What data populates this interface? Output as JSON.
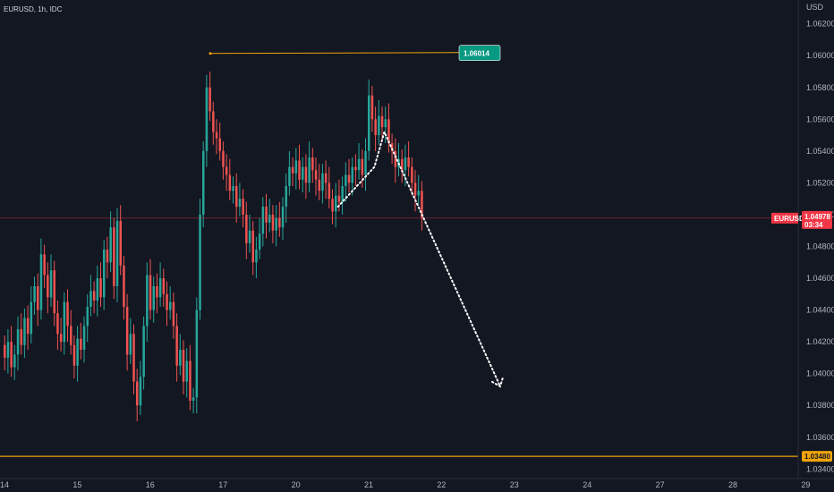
{
  "header": {
    "symbol": "EURUSD, 1h, IDC"
  },
  "chart_data": {
    "type": "candlestick",
    "currency": "USD",
    "ylim": [
      1.0334,
      1.0635
    ],
    "y_ticks": [
      1.062,
      1.06,
      1.058,
      1.056,
      1.054,
      1.052,
      1.05,
      1.048,
      1.046,
      1.044,
      1.042,
      1.04,
      1.038,
      1.036,
      1.034
    ],
    "y_tick_labels": [
      "1.06200",
      "1.06000",
      "1.05800",
      "1.05600",
      "1.05400",
      "1.05200",
      "1.05000",
      "1.04800",
      "1.04600",
      "1.04400",
      "1.04200",
      "1.04000",
      "1.03800",
      "1.03600",
      "1.03400"
    ],
    "x_ticks": [
      {
        "label": "14",
        "at": 0
      },
      {
        "label": "15",
        "at": 22
      },
      {
        "label": "16",
        "at": 44
      },
      {
        "label": "17",
        "at": 66
      },
      {
        "label": "20",
        "at": 88
      },
      {
        "label": "21",
        "at": 110
      },
      {
        "label": "22",
        "at": 132
      },
      {
        "label": "23",
        "at": 154
      },
      {
        "label": "24",
        "at": 176
      },
      {
        "label": "27",
        "at": 198
      },
      {
        "label": "28",
        "at": 220
      },
      {
        "label": "29",
        "at": 242
      }
    ],
    "bar_spacing_px": 3.7,
    "bars_visible": 140,
    "closes": [
      1.041,
      1.042,
      1.0404,
      1.0412,
      1.0428,
      1.0418,
      1.0435,
      1.0425,
      1.0445,
      1.0455,
      1.044,
      1.0475,
      1.0462,
      1.0448,
      1.0465,
      1.0438,
      1.0425,
      1.042,
      1.0445,
      1.043,
      1.0418,
      1.0405,
      1.0422,
      1.0415,
      1.043,
      1.0442,
      1.0452,
      1.0446,
      1.046,
      1.0448,
      1.0478,
      1.047,
      1.0492,
      1.0455,
      1.0496,
      1.0468,
      1.0442,
      1.0412,
      1.0425,
      1.0395,
      1.038,
      1.0398,
      1.043,
      1.0462,
      1.044,
      1.0455,
      1.0448,
      1.046,
      1.045,
      1.044,
      1.0445,
      1.043,
      1.0405,
      1.0415,
      1.0395,
      1.0408,
      1.0383,
      1.0385,
      1.044,
      1.05,
      1.054,
      1.058,
      1.0565,
      1.0552,
      1.0548,
      1.054,
      1.053,
      1.0525,
      1.0515,
      1.0518,
      1.0505,
      1.051,
      1.05,
      1.0482,
      1.049,
      1.047,
      1.0478,
      1.0488,
      1.0505,
      1.0495,
      1.05,
      1.049,
      1.0498,
      1.0492,
      1.0505,
      1.0518,
      1.053,
      1.0526,
      1.0534,
      1.0522,
      1.053,
      1.052,
      1.0536,
      1.0528,
      1.0522,
      1.0515,
      1.0526,
      1.052,
      1.051,
      1.0502,
      1.0512,
      1.0508,
      1.0518,
      1.0525,
      1.052,
      1.053,
      1.0528,
      1.0535,
      1.0525,
      1.054,
      1.0575,
      1.056,
      1.055,
      1.0562,
      1.0555,
      1.056,
      1.0545,
      1.054,
      1.053,
      1.0535,
      1.0528,
      1.0536,
      1.053,
      1.052,
      1.0512,
      1.0515,
      1.0498
    ],
    "opens": [
      1.0418,
      1.041,
      1.042,
      1.0404,
      1.0412,
      1.0428,
      1.0418,
      1.0435,
      1.0425,
      1.0445,
      1.0455,
      1.044,
      1.0475,
      1.0462,
      1.0448,
      1.0465,
      1.0438,
      1.0425,
      1.042,
      1.0445,
      1.043,
      1.0418,
      1.0405,
      1.0422,
      1.0415,
      1.043,
      1.0442,
      1.0452,
      1.0446,
      1.046,
      1.0448,
      1.0478,
      1.047,
      1.0492,
      1.0455,
      1.0496,
      1.0468,
      1.0442,
      1.0412,
      1.0425,
      1.0395,
      1.038,
      1.0398,
      1.043,
      1.0462,
      1.044,
      1.0455,
      1.0448,
      1.046,
      1.045,
      1.044,
      1.0445,
      1.043,
      1.0405,
      1.0415,
      1.0395,
      1.0408,
      1.0383,
      1.0385,
      1.044,
      1.05,
      1.054,
      1.058,
      1.0565,
      1.0552,
      1.0548,
      1.054,
      1.053,
      1.0525,
      1.0515,
      1.0518,
      1.0505,
      1.051,
      1.05,
      1.0482,
      1.049,
      1.047,
      1.0478,
      1.0488,
      1.0505,
      1.0495,
      1.05,
      1.049,
      1.0498,
      1.0492,
      1.0505,
      1.0518,
      1.053,
      1.0526,
      1.0534,
      1.0522,
      1.053,
      1.052,
      1.0536,
      1.0528,
      1.0522,
      1.0515,
      1.0526,
      1.052,
      1.051,
      1.0502,
      1.0512,
      1.0508,
      1.0518,
      1.0525,
      1.052,
      1.053,
      1.0528,
      1.0535,
      1.0525,
      1.054,
      1.0575,
      1.056,
      1.055,
      1.0562,
      1.0555,
      1.056,
      1.0545,
      1.054,
      1.053,
      1.0535,
      1.0528,
      1.0536,
      1.053,
      1.052,
      1.0512,
      1.0515
    ],
    "high_price_level": 1.06014,
    "high_price_label": "1.06014",
    "support_level": 1.0348,
    "support_label": "1.03480",
    "current_price": 1.04978,
    "current_price_label": "1.04978",
    "current_price_countdown": "03:34",
    "current_symbol_tag": "EURUSD",
    "projection": [
      {
        "bar": 101,
        "price": 1.0505
      },
      {
        "bar": 112,
        "price": 1.053
      },
      {
        "bar": 115,
        "price": 1.0552
      },
      {
        "bar": 150,
        "price": 1.0392
      }
    ],
    "colors": {
      "up": "#26a69a",
      "down": "#ef5350",
      "level_line": "#f0a30a",
      "high_tag_bg": "#089981",
      "price_tag_bg": "#f23645",
      "support_tag_bg": "#f0a30a",
      "background": "#131722",
      "axis_text": "#b2b5be"
    }
  }
}
